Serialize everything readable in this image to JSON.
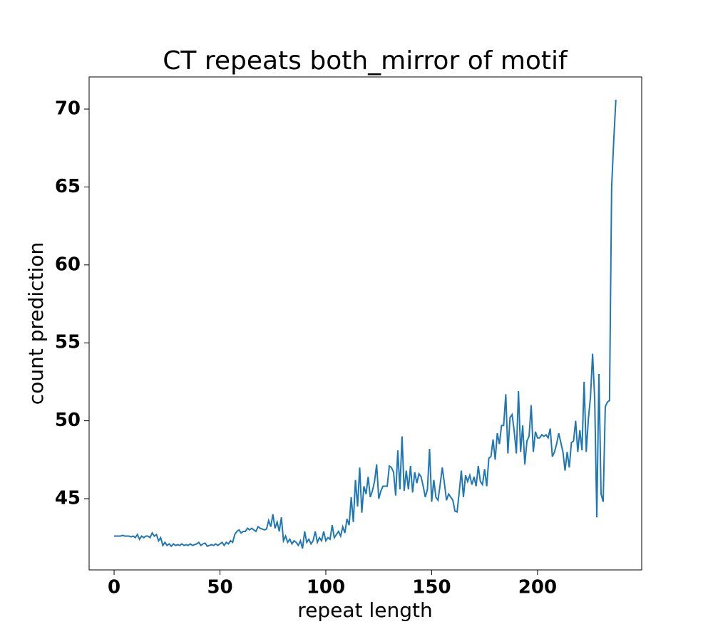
{
  "chart_data": {
    "type": "line",
    "title": "CT repeats both_mirror of motif",
    "xlabel": "repeat length",
    "ylabel": "count prediction",
    "x": [
      0,
      1,
      2,
      3,
      4,
      5,
      6,
      7,
      8,
      9,
      10,
      11,
      12,
      13,
      14,
      15,
      16,
      17,
      18,
      19,
      20,
      21,
      22,
      23,
      24,
      25,
      26,
      27,
      28,
      29,
      30,
      31,
      32,
      33,
      34,
      35,
      36,
      37,
      38,
      39,
      40,
      41,
      42,
      43,
      44,
      45,
      46,
      47,
      48,
      49,
      50,
      51,
      52,
      53,
      54,
      55,
      56,
      57,
      58,
      59,
      60,
      61,
      62,
      63,
      64,
      65,
      66,
      67,
      68,
      69,
      70,
      71,
      72,
      73,
      74,
      75,
      76,
      77,
      78,
      79,
      80,
      81,
      82,
      83,
      84,
      85,
      86,
      87,
      88,
      89,
      90,
      91,
      92,
      93,
      94,
      95,
      96,
      97,
      98,
      99,
      100,
      101,
      102,
      103,
      104,
      105,
      106,
      107,
      108,
      109,
      110,
      111,
      112,
      113,
      114,
      115,
      116,
      117,
      118,
      119,
      120,
      121,
      122,
      123,
      124,
      125,
      126,
      127,
      128,
      129,
      130,
      131,
      132,
      133,
      134,
      135,
      136,
      137,
      138,
      139,
      140,
      141,
      142,
      143,
      144,
      145,
      146,
      147,
      148,
      149,
      150,
      151,
      152,
      153,
      154,
      155,
      156,
      157,
      158,
      159,
      160,
      161,
      162,
      163,
      164,
      165,
      166,
      167,
      168,
      169,
      170,
      171,
      172,
      173,
      174,
      175,
      176,
      177,
      178,
      179,
      180,
      181,
      182,
      183,
      184,
      185,
      186,
      187,
      188,
      189,
      190,
      191,
      192,
      193,
      194,
      195,
      196,
      197,
      198,
      199,
      200,
      201,
      202,
      203,
      204,
      205,
      206,
      207,
      208,
      209,
      210,
      211,
      212,
      213,
      214,
      215,
      216,
      217,
      218,
      219,
      220,
      221,
      222,
      223,
      224,
      225,
      226,
      227,
      228,
      229,
      230,
      231,
      232,
      233,
      234,
      235,
      236,
      237
    ],
    "series": [
      {
        "color": "#1f77b4",
        "values": [
          42.6,
          42.6,
          42.6,
          42.6,
          42.65,
          42.6,
          42.6,
          42.6,
          42.55,
          42.6,
          42.5,
          42.7,
          42.4,
          42.6,
          42.5,
          42.6,
          42.6,
          42.5,
          42.8,
          42.6,
          42.7,
          42.3,
          42.5,
          42.0,
          42.2,
          42.0,
          42.1,
          41.95,
          42.1,
          42.0,
          42.05,
          42.0,
          42.1,
          42.0,
          42.05,
          42.0,
          42.1,
          42.0,
          42.05,
          42.1,
          42.2,
          42.0,
          42.1,
          42.15,
          41.95,
          42.0,
          42.05,
          42.0,
          42.1,
          42.0,
          42.1,
          42.2,
          42.0,
          42.2,
          42.1,
          42.3,
          42.2,
          42.7,
          42.9,
          43.0,
          42.8,
          42.9,
          42.9,
          43.1,
          43.0,
          43.1,
          43.0,
          42.9,
          43.2,
          43.1,
          43.05,
          43.0,
          43.05,
          43.6,
          43.2,
          44.0,
          43.1,
          43.5,
          42.9,
          43.8,
          42.3,
          42.6,
          42.2,
          42.4,
          42.1,
          42.3,
          42.2,
          42.0,
          42.3,
          41.8,
          42.9,
          42.2,
          42.4,
          42.1,
          42.3,
          42.9,
          42.2,
          42.5,
          42.3,
          42.9,
          42.3,
          42.5,
          42.4,
          43.3,
          42.5,
          42.7,
          42.9,
          42.6,
          43.2,
          42.8,
          43.7,
          43.3,
          45.1,
          43.5,
          46.2,
          44.5,
          47.0,
          44.1,
          45.8,
          45.3,
          46.4,
          45.1,
          45.5,
          46.1,
          47.2,
          45.0,
          45.5,
          45.8,
          45.8,
          45.8,
          47.1,
          47.0,
          46.7,
          45.2,
          48.1,
          45.6,
          49.0,
          45.5,
          46.8,
          45.6,
          47.1,
          45.4,
          46.7,
          46.0,
          46.6,
          46.4,
          45.8,
          45.1,
          45.6,
          48.2,
          44.8,
          46.2,
          45.1,
          44.9,
          45.9,
          47.0,
          46.0,
          44.9,
          45.3,
          45.1,
          44.9,
          44.2,
          44.15,
          45.4,
          46.8,
          45.1,
          46.5,
          46.1,
          46.5,
          45.9,
          46.4,
          45.8,
          47.1,
          46.1,
          45.9,
          46.9,
          45.8,
          47.6,
          47.7,
          48.8,
          47.5,
          49.2,
          48.5,
          49.7,
          49.7,
          51.7,
          47.9,
          50.2,
          50.4,
          49.3,
          47.9,
          51.9,
          48.0,
          49.7,
          47.2,
          48.7,
          49.0,
          51.0,
          48.0,
          49.3,
          48.9,
          48.9,
          49.1,
          49.0,
          49.1,
          48.9,
          49.5,
          47.7,
          48.0,
          48.5,
          49.2,
          48.6,
          48.0,
          46.8,
          48.0,
          47.0,
          48.6,
          48.7,
          50.0,
          48.0,
          49.4,
          48.1,
          52.5,
          48.0,
          50.1,
          51.5,
          54.3,
          51.4,
          43.8,
          53.0,
          45.3,
          44.8,
          50.9,
          51.2,
          51.3,
          65.0,
          68.0,
          70.6
        ]
      }
    ],
    "xlim": [
      -11.8,
      249.2
    ],
    "ylim": [
      40.43,
      72.06
    ],
    "xticks": [
      0,
      50,
      100,
      150,
      200
    ],
    "yticks": [
      45,
      50,
      55,
      60,
      65,
      70
    ]
  }
}
